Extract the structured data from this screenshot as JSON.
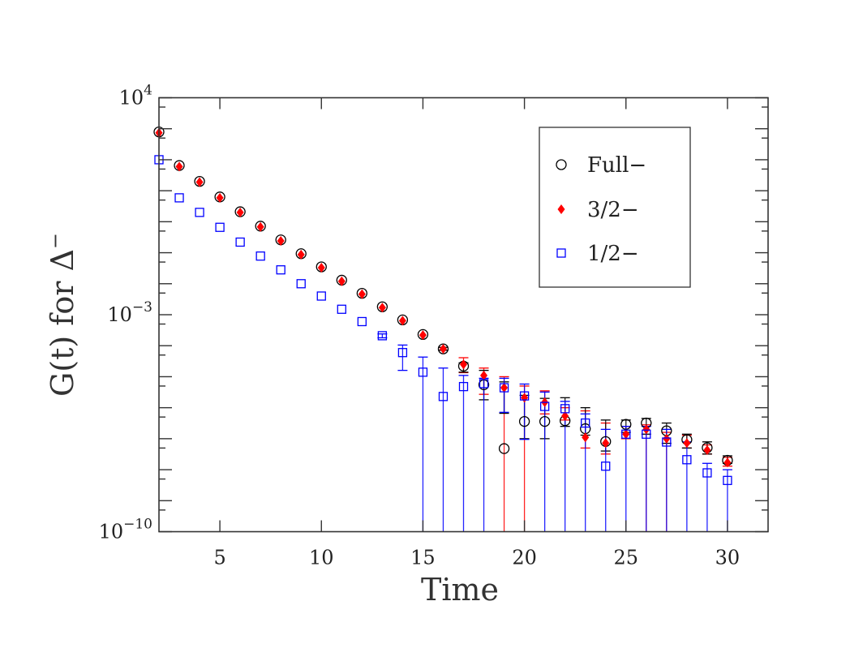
{
  "chart_data": {
    "type": "scatter",
    "title": "",
    "xlabel": "Time",
    "ylabel": "G(t) for Δ",
    "ylabel_superscript": "−",
    "xlim": [
      2,
      32
    ],
    "ylim": [
      1e-10,
      10000.0
    ],
    "yscale": "log",
    "grid": false,
    "legend_position": "top-right",
    "x_ticks": [
      5,
      10,
      15,
      20,
      25,
      30
    ],
    "y_tick_labels": [
      {
        "base": "10",
        "exp": "4",
        "value": 10000.0
      },
      {
        "base": "10",
        "exp": "−3",
        "value": 0.001
      },
      {
        "base": "10",
        "exp": "−10",
        "value": 1e-10
      }
    ],
    "series": [
      {
        "name": "Full−",
        "marker": "open-circle",
        "color": "#000000",
        "x": [
          2,
          3,
          4,
          5,
          6,
          7,
          8,
          9,
          10,
          11,
          12,
          13,
          14,
          15,
          16,
          17,
          18,
          19,
          20,
          21,
          22,
          23,
          24,
          25,
          26,
          27,
          28,
          29,
          30
        ],
        "y": [
          790.0,
          65.0,
          20.0,
          6.3,
          2.1,
          0.72,
          0.26,
          0.093,
          0.035,
          0.013,
          0.0049,
          0.0018,
          0.00068,
          0.00023,
          7.9e-05,
          2.2e-05,
          5.5e-06,
          4.8e-08,
          3.6e-07,
          3.6e-07,
          3.8e-07,
          2.1e-07,
          8.1e-08,
          2.9e-07,
          3.2e-07,
          1.8e-07,
          9.3e-08,
          5.1e-08,
          2e-08
        ],
        "errors": {
          "16": [
            7.1e-05,
            8.9e-05
          ],
          "17": [
            1.4e-05,
            2.8e-05
          ],
          "18": [
            1.8e-06,
            1.6e-05
          ],
          "19": [
            6.6e-07,
            6.8e-06
          ],
          "20": [
            1e-07,
            2.5e-06
          ],
          "21": [
            1e-07,
            2e-06
          ],
          "22": [
            2.5e-07,
            2.1e-06
          ],
          "23": [
            1.3e-07,
            1e-06
          ],
          "24": [
            4e-08,
            4e-07
          ],
          "25": [
            1.6e-07,
            4e-07
          ],
          "26": [
            1.4e-07,
            4.5e-07
          ],
          "27": [
            7.1e-08,
            3.2e-07
          ],
          "28": [
            5e-08,
            1.4e-07
          ],
          "29": [
            3.2e-08,
            7.9e-08
          ],
          "30": [
            1.6e-08,
            2.8e-08
          ]
        }
      },
      {
        "name": "3/2−",
        "marker": "filled-diamond",
        "color": "#ff0000",
        "x": [
          2,
          3,
          4,
          5,
          6,
          7,
          8,
          9,
          10,
          11,
          12,
          13,
          14,
          15,
          16,
          17,
          18,
          19,
          20,
          21,
          22,
          23,
          24,
          25,
          26,
          27,
          28,
          29,
          30
        ],
        "y": [
          740.0,
          60.0,
          19.0,
          5.9,
          2.0,
          0.68,
          0.24,
          0.087,
          0.033,
          0.012,
          0.0046,
          0.0017,
          0.00064,
          0.00022,
          7.9e-05,
          2.5e-05,
          1.1e-05,
          4.4e-06,
          2.1e-06,
          1.5e-06,
          5.4e-07,
          1.1e-07,
          7.2e-08,
          1.4e-07,
          2e-07,
          1e-07,
          7.2e-08,
          4.3e-08,
          1.7e-08
        ],
        "errors": {
          "16": [
            7.1e-05,
            8.9e-05
          ],
          "17": [
            1.35e-05,
            4.1e-05
          ],
          "18": [
            2.7e-06,
            1.9e-05
          ],
          "19": [
            0,
            1e-05
          ],
          "20": [
            0,
            5e-06
          ],
          "21": [
            6.3e-07,
            3.5e-06
          ],
          "22": [
            4e-07,
            1e-06
          ],
          "23": [
            5e-08,
            7.9e-07
          ],
          "24": [
            3.2e-08,
            3.2e-07
          ],
          "25": [
            1e-07,
            2.5e-07
          ],
          "26": [
            0,
            2.8e-07
          ],
          "27": [
            0,
            1.6e-07
          ],
          "28": [
            5e-08,
            1.3e-07
          ],
          "29": [
            3.2e-08,
            6.3e-08
          ],
          "30": [
            1.3e-08,
            2.5e-08
          ]
        }
      },
      {
        "name": "1/2−",
        "marker": "open-square",
        "color": "#0000ff",
        "x": [
          2,
          3,
          4,
          5,
          6,
          7,
          8,
          9,
          10,
          11,
          12,
          13,
          14,
          15,
          16,
          17,
          18,
          19,
          20,
          21,
          22,
          23,
          24,
          25,
          26,
          27,
          28,
          29,
          30
        ],
        "y": [
          100.0,
          5.9,
          2.0,
          0.66,
          0.22,
          0.078,
          0.028,
          0.01,
          0.004,
          0.0015,
          0.0006,
          0.00021,
          6e-05,
          1.4e-05,
          2.3e-06,
          4.8e-06,
          6e-06,
          4.4e-06,
          2.4e-06,
          1.1e-06,
          9.3e-07,
          3.2e-07,
          1.3e-08,
          1.4e-07,
          1.4e-07,
          7.8e-08,
          2.1e-08,
          7.9e-09,
          4.5e-09
        ],
        "errors": {
          "13": [
            0.00018,
            0.00024
          ],
          "14": [
            1.6e-05,
            0.000105
          ],
          "15": [
            0,
            4.3e-05
          ],
          "16": [
            0,
            1.9e-05
          ],
          "17": [
            0,
            1.1e-05
          ],
          "18": [
            0,
            8.9e-06
          ],
          "19": [
            7.1e-07,
            8.9e-06
          ],
          "20": [
            9.5e-08,
            5.8e-06
          ],
          "21": [
            0,
            3.2e-06
          ],
          "22": [
            0,
            1.6e-06
          ],
          "23": [
            0,
            6.3e-07
          ],
          "24": [
            0,
            2e-07
          ],
          "25": [
            0,
            2.5e-07
          ],
          "26": [
            0,
            2.5e-07
          ],
          "27": [
            0,
            2e-07
          ],
          "28": [
            0,
            7.9e-08
          ],
          "29": [
            0,
            1.6e-08
          ],
          "30": [
            0,
            1e-08
          ]
        }
      }
    ]
  }
}
